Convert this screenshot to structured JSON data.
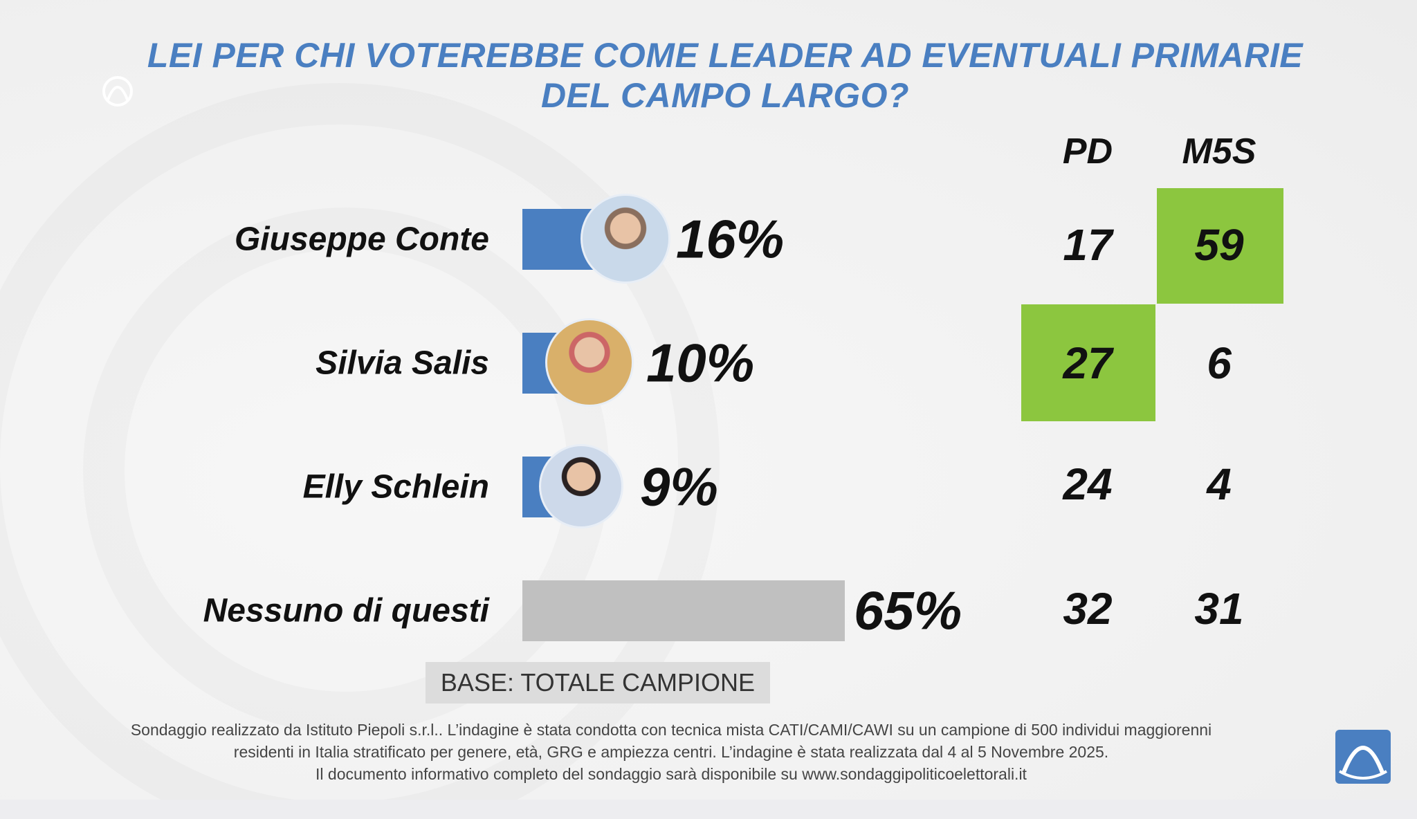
{
  "title": {
    "line1": "LEI PER CHI VOTEREBBE COME LEADER AD EVENTUALI PRIMARIE",
    "line2": "DEL CAMPO LARGO?"
  },
  "chart_data": {
    "type": "bar",
    "title": "LEI PER CHI VOTEREBBE COME LEADER AD EVENTUALI PRIMARIE DEL CAMPO LARGO?",
    "categories": [
      "Giuseppe Conte",
      "Silvia Salis",
      "Elly Schlein",
      "Nessuno di questi"
    ],
    "values": [
      16,
      10,
      9,
      65
    ],
    "value_labels": [
      "16%",
      "10%",
      "9%",
      "65%"
    ],
    "bar_colors": [
      "#4a7fc1",
      "#4a7fc1",
      "#4a7fc1",
      "#c0c0c0"
    ],
    "table": {
      "columns": [
        "PD",
        "M5S"
      ],
      "rows": [
        [
          "17",
          "59"
        ],
        [
          "27",
          "6"
        ],
        [
          "24",
          "4"
        ],
        [
          "32",
          "31"
        ]
      ],
      "highlighted": [
        [
          0,
          1
        ],
        [
          1,
          0
        ]
      ],
      "highlight_color": "#8cc63f"
    }
  },
  "base_label": "BASE: TOTALE CAMPIONE",
  "footer": [
    "Sondaggio realizzato da Istituto Piepoli s.r.l.. L’indagine è stata condotta con tecnica mista CATI/CAMI/CAWI su un campione di 500 individui maggiorenni",
    "residenti in Italia stratificato per genere, età, GRG e ampiezza centri. L’indagine è stata realizzata dal 4 al 5 Novembre 2025.",
    "Il documento informativo completo del sondaggio sarà disponibile su www.sondaggipoliticoelettorali.it"
  ]
}
